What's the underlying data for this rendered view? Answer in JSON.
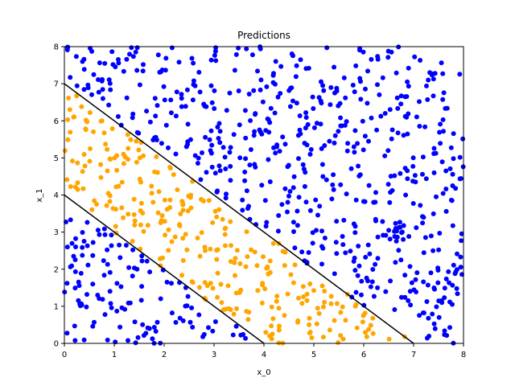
{
  "chart_data": {
    "type": "scatter",
    "title": "Predictions",
    "xlabel": "x_0",
    "ylabel": "x_1",
    "xlim": [
      0,
      8
    ],
    "ylim": [
      0,
      8
    ],
    "x_ticks": [
      "0",
      "1",
      "2",
      "3",
      "4",
      "5",
      "6",
      "7",
      "8"
    ],
    "y_ticks": [
      "0",
      "1",
      "2",
      "3",
      "4",
      "5",
      "6",
      "7",
      "8"
    ],
    "grid": false,
    "colors": {
      "class_0": "#0000ff",
      "class_1": "#ffa500",
      "boundary": "#000000"
    },
    "boundaries": [
      {
        "x": [
          0,
          4
        ],
        "y": [
          4,
          0
        ]
      },
      {
        "x": [
          0,
          7
        ],
        "y": [
          7,
          0
        ]
      }
    ],
    "point_rule": "orange where 4 < x_0 + x_1 < 7, blue otherwise",
    "n_points": 1000,
    "random_seed": 7
  }
}
